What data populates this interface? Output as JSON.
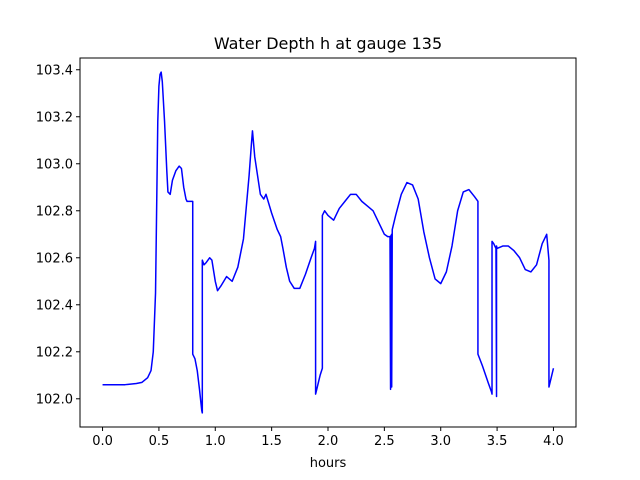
{
  "chart_data": {
    "type": "line",
    "title": "Water Depth h at gauge 135",
    "xlabel": "hours",
    "ylabel": "",
    "xlim": [
      -0.2,
      4.2
    ],
    "ylim": [
      101.88,
      103.45
    ],
    "grid": false,
    "xticks": [
      0.0,
      0.5,
      1.0,
      1.5,
      2.0,
      2.5,
      3.0,
      3.5,
      4.0
    ],
    "xtick_labels": [
      "0.0",
      "0.5",
      "1.0",
      "1.5",
      "2.0",
      "2.5",
      "3.0",
      "3.5",
      "4.0"
    ],
    "yticks": [
      102.0,
      102.2,
      102.4,
      102.6,
      102.8,
      103.0,
      103.2,
      103.4
    ],
    "ytick_labels": [
      "102.0",
      "102.2",
      "102.4",
      "102.6",
      "102.8",
      "103.0",
      "103.2",
      "103.4"
    ],
    "series": [
      {
        "color": "#0000ff",
        "x": [
          0.0,
          0.1,
          0.2,
          0.3,
          0.35,
          0.4,
          0.43,
          0.45,
          0.47,
          0.49,
          0.5,
          0.51,
          0.52,
          0.53,
          0.55,
          0.57,
          0.58,
          0.6,
          0.62,
          0.65,
          0.68,
          0.7,
          0.72,
          0.74,
          0.75,
          0.77,
          0.79,
          0.8,
          0.8,
          0.82,
          0.84,
          0.86,
          0.88,
          0.885,
          0.885,
          0.9,
          0.92,
          0.95,
          0.97,
          1.0,
          1.02,
          1.05,
          1.1,
          1.15,
          1.2,
          1.25,
          1.3,
          1.32,
          1.33,
          1.35,
          1.4,
          1.43,
          1.45,
          1.5,
          1.55,
          1.58,
          1.6,
          1.63,
          1.66,
          1.7,
          1.75,
          1.8,
          1.85,
          1.88,
          1.89,
          1.89,
          1.9,
          1.93,
          1.95,
          1.95,
          1.97,
          2.0,
          2.05,
          2.1,
          2.15,
          2.2,
          2.25,
          2.3,
          2.35,
          2.4,
          2.45,
          2.5,
          2.53,
          2.55,
          2.555,
          2.555,
          2.565,
          2.565,
          2.57,
          2.6,
          2.65,
          2.7,
          2.75,
          2.8,
          2.85,
          2.9,
          2.95,
          3.0,
          3.05,
          3.1,
          3.15,
          3.2,
          3.25,
          3.3,
          3.33,
          3.33,
          3.37,
          3.42,
          3.45,
          3.455,
          3.455,
          3.47,
          3.49,
          3.495,
          3.495,
          3.5,
          3.55,
          3.6,
          3.65,
          3.7,
          3.75,
          3.8,
          3.85,
          3.9,
          3.94,
          3.96,
          3.96,
          3.98,
          4.0
        ],
        "y": [
          102.06,
          102.06,
          102.06,
          102.065,
          102.07,
          102.09,
          102.12,
          102.2,
          102.45,
          103.18,
          103.33,
          103.38,
          103.39,
          103.35,
          103.18,
          102.97,
          102.88,
          102.87,
          102.93,
          102.97,
          102.99,
          102.98,
          102.9,
          102.85,
          102.84,
          102.84,
          102.84,
          102.84,
          102.19,
          102.17,
          102.12,
          102.04,
          101.95,
          101.94,
          102.59,
          102.57,
          102.58,
          102.6,
          102.59,
          102.5,
          102.46,
          102.48,
          102.52,
          102.5,
          102.56,
          102.68,
          102.95,
          103.08,
          103.14,
          103.03,
          102.87,
          102.85,
          102.87,
          102.79,
          102.72,
          102.69,
          102.64,
          102.56,
          102.5,
          102.47,
          102.47,
          102.53,
          102.6,
          102.64,
          102.67,
          102.02,
          102.04,
          102.1,
          102.13,
          102.78,
          102.8,
          102.78,
          102.76,
          102.81,
          102.84,
          102.87,
          102.87,
          102.84,
          102.82,
          102.8,
          102.75,
          102.7,
          102.69,
          102.69,
          102.04,
          102.69,
          102.7,
          102.05,
          102.72,
          102.78,
          102.87,
          102.92,
          102.91,
          102.85,
          102.71,
          102.6,
          102.51,
          102.49,
          102.54,
          102.65,
          102.8,
          102.88,
          102.89,
          102.86,
          102.84,
          102.19,
          102.14,
          102.07,
          102.03,
          102.02,
          102.67,
          102.66,
          102.64,
          102.01,
          102.65,
          102.64,
          102.65,
          102.65,
          102.63,
          102.6,
          102.55,
          102.54,
          102.57,
          102.66,
          102.7,
          102.59,
          102.05,
          102.09,
          102.13
        ]
      }
    ]
  }
}
